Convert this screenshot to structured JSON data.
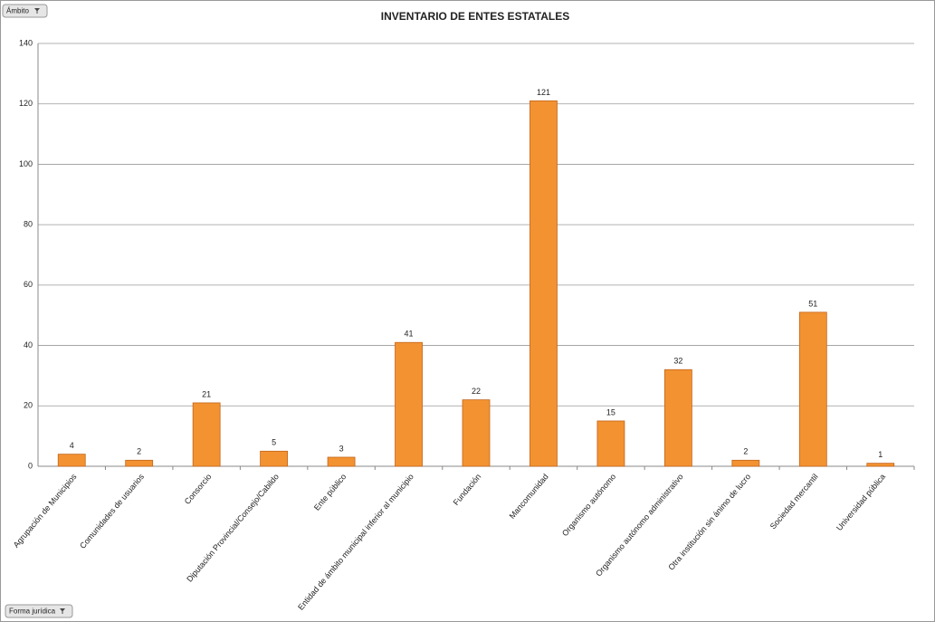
{
  "chart_data": {
    "type": "bar",
    "title": "INVENTARIO DE ENTES ESTATALES",
    "categories": [
      "Agrupación de Municipios",
      "Comunidades de usuarios",
      "Consorcio",
      "Diputación Provincial/Consejo/Cabildo",
      "Ente público",
      "Entidad de ámbito municipal inferior al municipio",
      "Fundación",
      "Mancomunidad",
      "Organismo autónomo",
      "Organismo autónomo administrativo",
      "Otra institución sin ánimo de lucro",
      "Sociedad mercantil",
      "Universidad pública"
    ],
    "values": [
      4,
      2,
      21,
      5,
      3,
      41,
      22,
      121,
      15,
      32,
      2,
      51,
      1
    ],
    "color": "#f39231",
    "ylim": [
      0,
      140
    ],
    "yticks": [
      0,
      20,
      40,
      60,
      80,
      100,
      120,
      140
    ],
    "grid": true
  },
  "pivot_fields": [
    "Ámbito",
    "Forma jurídica"
  ]
}
